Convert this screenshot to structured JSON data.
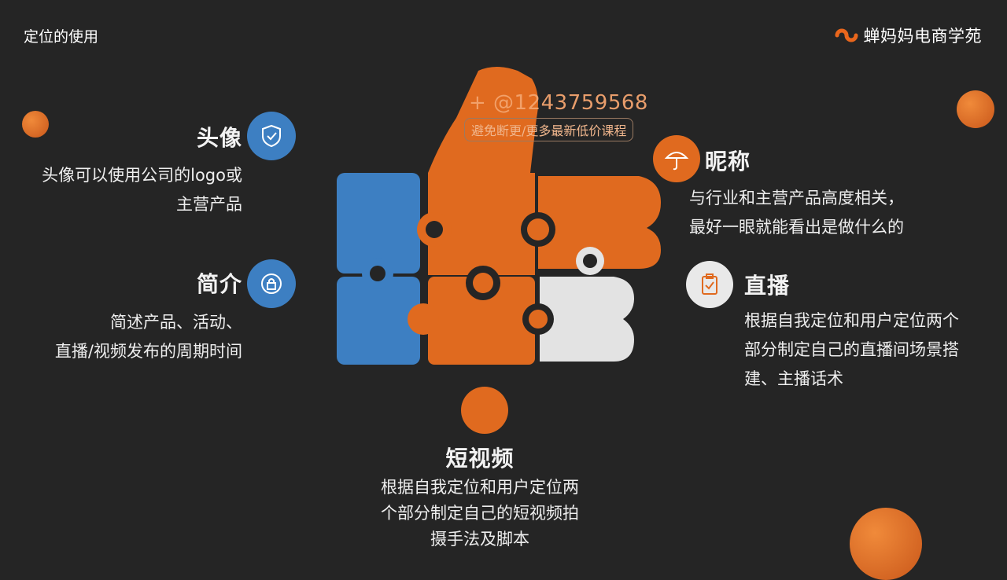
{
  "header": {
    "title": "定位的使用",
    "brand": "蝉妈妈电商学苑"
  },
  "watermark": {
    "line1": "+ @1243759568",
    "line2": "避免断更/更多最新低价课程"
  },
  "sections": {
    "avatar": {
      "title": "头像",
      "desc_lines": [
        "头像可以使用公司的logo或",
        "主营产品"
      ],
      "icon": "shield-check-icon"
    },
    "intro": {
      "title": "简介",
      "desc_lines": [
        "简述产品、活动、",
        "直播/视频发布的周期时间"
      ],
      "icon": "lock-icon"
    },
    "nickname": {
      "title": "昵称",
      "desc_lines": [
        "与行业和主营产品高度相关，",
        "最好一眼就能看出是做什么的"
      ],
      "icon": "umbrella-icon"
    },
    "live": {
      "title": "直播",
      "desc_lines": [
        "根据自我定位和用户定位两个",
        "部分制定自己的直播间场景搭",
        "建、主播话术"
      ],
      "icon": "clipboard-check-icon"
    },
    "short_video": {
      "title": "短视频",
      "desc_lines": [
        "根据自我定位和用户定位两",
        "个部分制定自己的短视频拍",
        "摄手法及脚本"
      ]
    }
  },
  "colors": {
    "background": "#252525",
    "blue": "#3d7fc2",
    "orange": "#e06a1f",
    "grey": "#e9e9e9"
  }
}
